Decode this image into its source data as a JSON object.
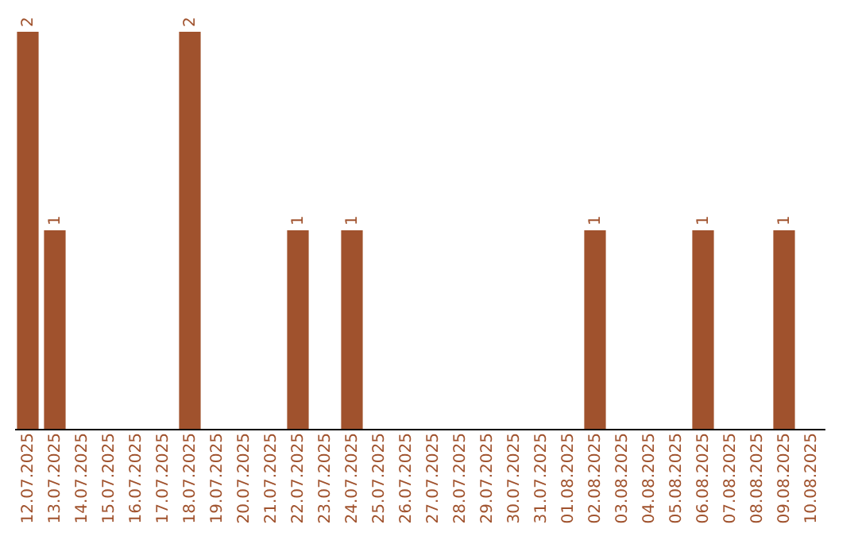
{
  "chart_data": {
    "type": "bar",
    "categories": [
      "12.07.2025",
      "13.07.2025",
      "14.07.2025",
      "15.07.2025",
      "16.07.2025",
      "17.07.2025",
      "18.07.2025",
      "19.07.2025",
      "20.07.2025",
      "21.07.2025",
      "22.07.2025",
      "23.07.2025",
      "24.07.2025",
      "25.07.2025",
      "26.07.2025",
      "27.07.2025",
      "28.07.2025",
      "29.07.2025",
      "30.07.2025",
      "31.07.2025",
      "01.08.2025",
      "02.08.2025",
      "03.08.2025",
      "04.08.2025",
      "05.08.2025",
      "06.08.2025",
      "07.08.2025",
      "08.08.2025",
      "09.08.2025",
      "10.08.2025"
    ],
    "values": [
      2,
      1,
      0,
      0,
      0,
      0,
      2,
      0,
      0,
      0,
      1,
      0,
      1,
      0,
      0,
      0,
      0,
      0,
      0,
      0,
      0,
      1,
      0,
      0,
      0,
      1,
      0,
      0,
      1,
      0
    ],
    "value_labels": [
      "2",
      "1",
      null,
      null,
      null,
      null,
      "2",
      null,
      null,
      null,
      "1",
      null,
      "1",
      null,
      null,
      null,
      null,
      null,
      null,
      null,
      null,
      "1",
      null,
      null,
      null,
      "1",
      null,
      null,
      "1",
      null
    ],
    "color": "#a0522d",
    "tick_labels": "x"
  }
}
